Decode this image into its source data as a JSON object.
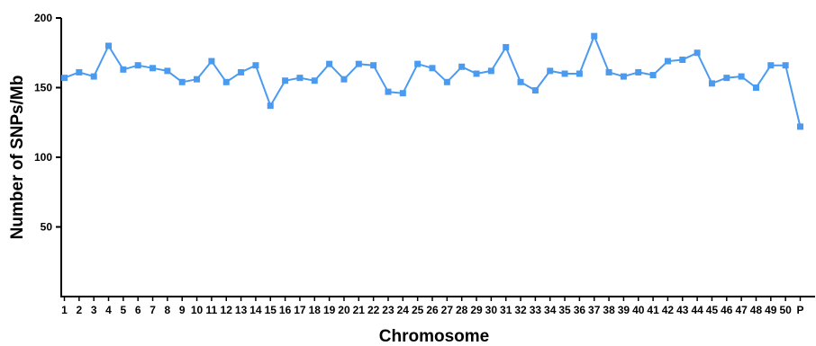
{
  "chart_data": {
    "type": "line",
    "xlabel": "Chromosome",
    "ylabel": "Number of SNPs/Mb",
    "ylim": [
      0,
      200
    ],
    "yticks": [
      "50",
      "100",
      "150",
      "200"
    ],
    "categories": [
      "1",
      "2",
      "3",
      "4",
      "5",
      "6",
      "7",
      "8",
      "9",
      "10",
      "11",
      "12",
      "13",
      "14",
      "15",
      "16",
      "17",
      "18",
      "19",
      "20",
      "21",
      "22",
      "23",
      "24",
      "25",
      "26",
      "27",
      "28",
      "29",
      "30",
      "31",
      "32",
      "33",
      "34",
      "35",
      "36",
      "37",
      "38",
      "39",
      "40",
      "41",
      "42",
      "43",
      "44",
      "45",
      "46",
      "47",
      "48",
      "49",
      "50",
      "P"
    ],
    "series": [
      {
        "values": [
          157,
          161,
          158,
          180,
          163,
          166,
          164,
          162,
          154,
          156,
          169,
          154,
          161,
          166,
          137,
          155,
          157,
          155,
          167,
          156,
          167,
          166,
          147,
          146,
          167,
          164,
          154,
          165,
          160,
          162,
          179,
          154,
          148,
          162,
          160,
          160,
          187,
          161,
          158,
          161,
          159,
          169,
          170,
          175,
          153,
          157,
          158,
          150,
          166,
          166,
          122
        ]
      }
    ],
    "grid": false,
    "colors": {
      "line": "#4a9bf0",
      "marker": "#4a9bf0",
      "axis": "#000000"
    },
    "marker": "square"
  }
}
